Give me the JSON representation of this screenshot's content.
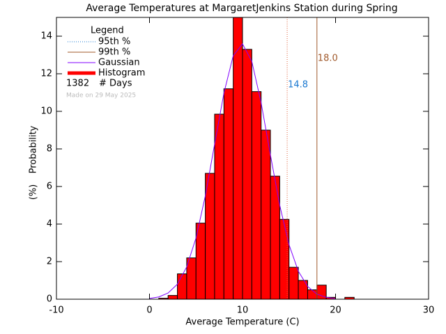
{
  "chart_data": {
    "type": "histogram",
    "title": "Average Temperatures at MargaretJenkins Station during Spring",
    "xlabel": "Average Temperature (C)",
    "ylabel": "Probability",
    "ylabel_unit": "(%)",
    "xlim": [
      -10,
      30
    ],
    "ylim": [
      0,
      15
    ],
    "xticks": [
      -10,
      0,
      10,
      20,
      30
    ],
    "yticks": [
      0,
      2,
      4,
      6,
      8,
      10,
      12,
      14
    ],
    "legend_title": "Legend",
    "histogram": {
      "name": "Histogram",
      "color": "#ff0000",
      "bins": [
        1,
        2,
        3,
        4,
        5,
        6,
        7,
        8,
        9,
        10,
        11,
        12,
        13,
        14,
        15,
        16,
        17,
        18,
        19,
        20,
        21,
        22
      ],
      "values": [
        0.05,
        0.2,
        1.35,
        2.2,
        4.05,
        6.7,
        9.85,
        11.2,
        15,
        13.3,
        11.05,
        9.0,
        6.55,
        4.25,
        1.7,
        1.0,
        0.5,
        0.75,
        0.1,
        0,
        0.1
      ]
    },
    "gaussian": {
      "name": "Gaussian",
      "color": "#8000ff",
      "x": [
        0,
        1,
        2,
        3,
        4,
        5,
        6,
        7,
        8,
        9,
        10,
        11,
        12,
        13,
        14,
        15,
        16,
        17,
        18,
        19,
        20
      ],
      "values": [
        0.04,
        0.12,
        0.33,
        0.8,
        1.72,
        3.26,
        5.5,
        8.25,
        10.97,
        12.96,
        13.59,
        12.66,
        10.46,
        7.68,
        5.0,
        2.9,
        1.49,
        0.68,
        0.27,
        0.1,
        0.03
      ]
    },
    "percentiles": [
      {
        "name": "95th %",
        "value": 14.8,
        "label": "14.8",
        "color": "#e0603a",
        "label_color": "#1a78d0",
        "dash": "dotted"
      },
      {
        "name": "99th %",
        "value": 18.0,
        "label": "18.0",
        "color": "#a0582a",
        "label_color": "#a0582a",
        "dash": "solid"
      }
    ],
    "days_count": 1382,
    "days_label": "# Days",
    "footnote": "Made on 29 May 2025"
  }
}
